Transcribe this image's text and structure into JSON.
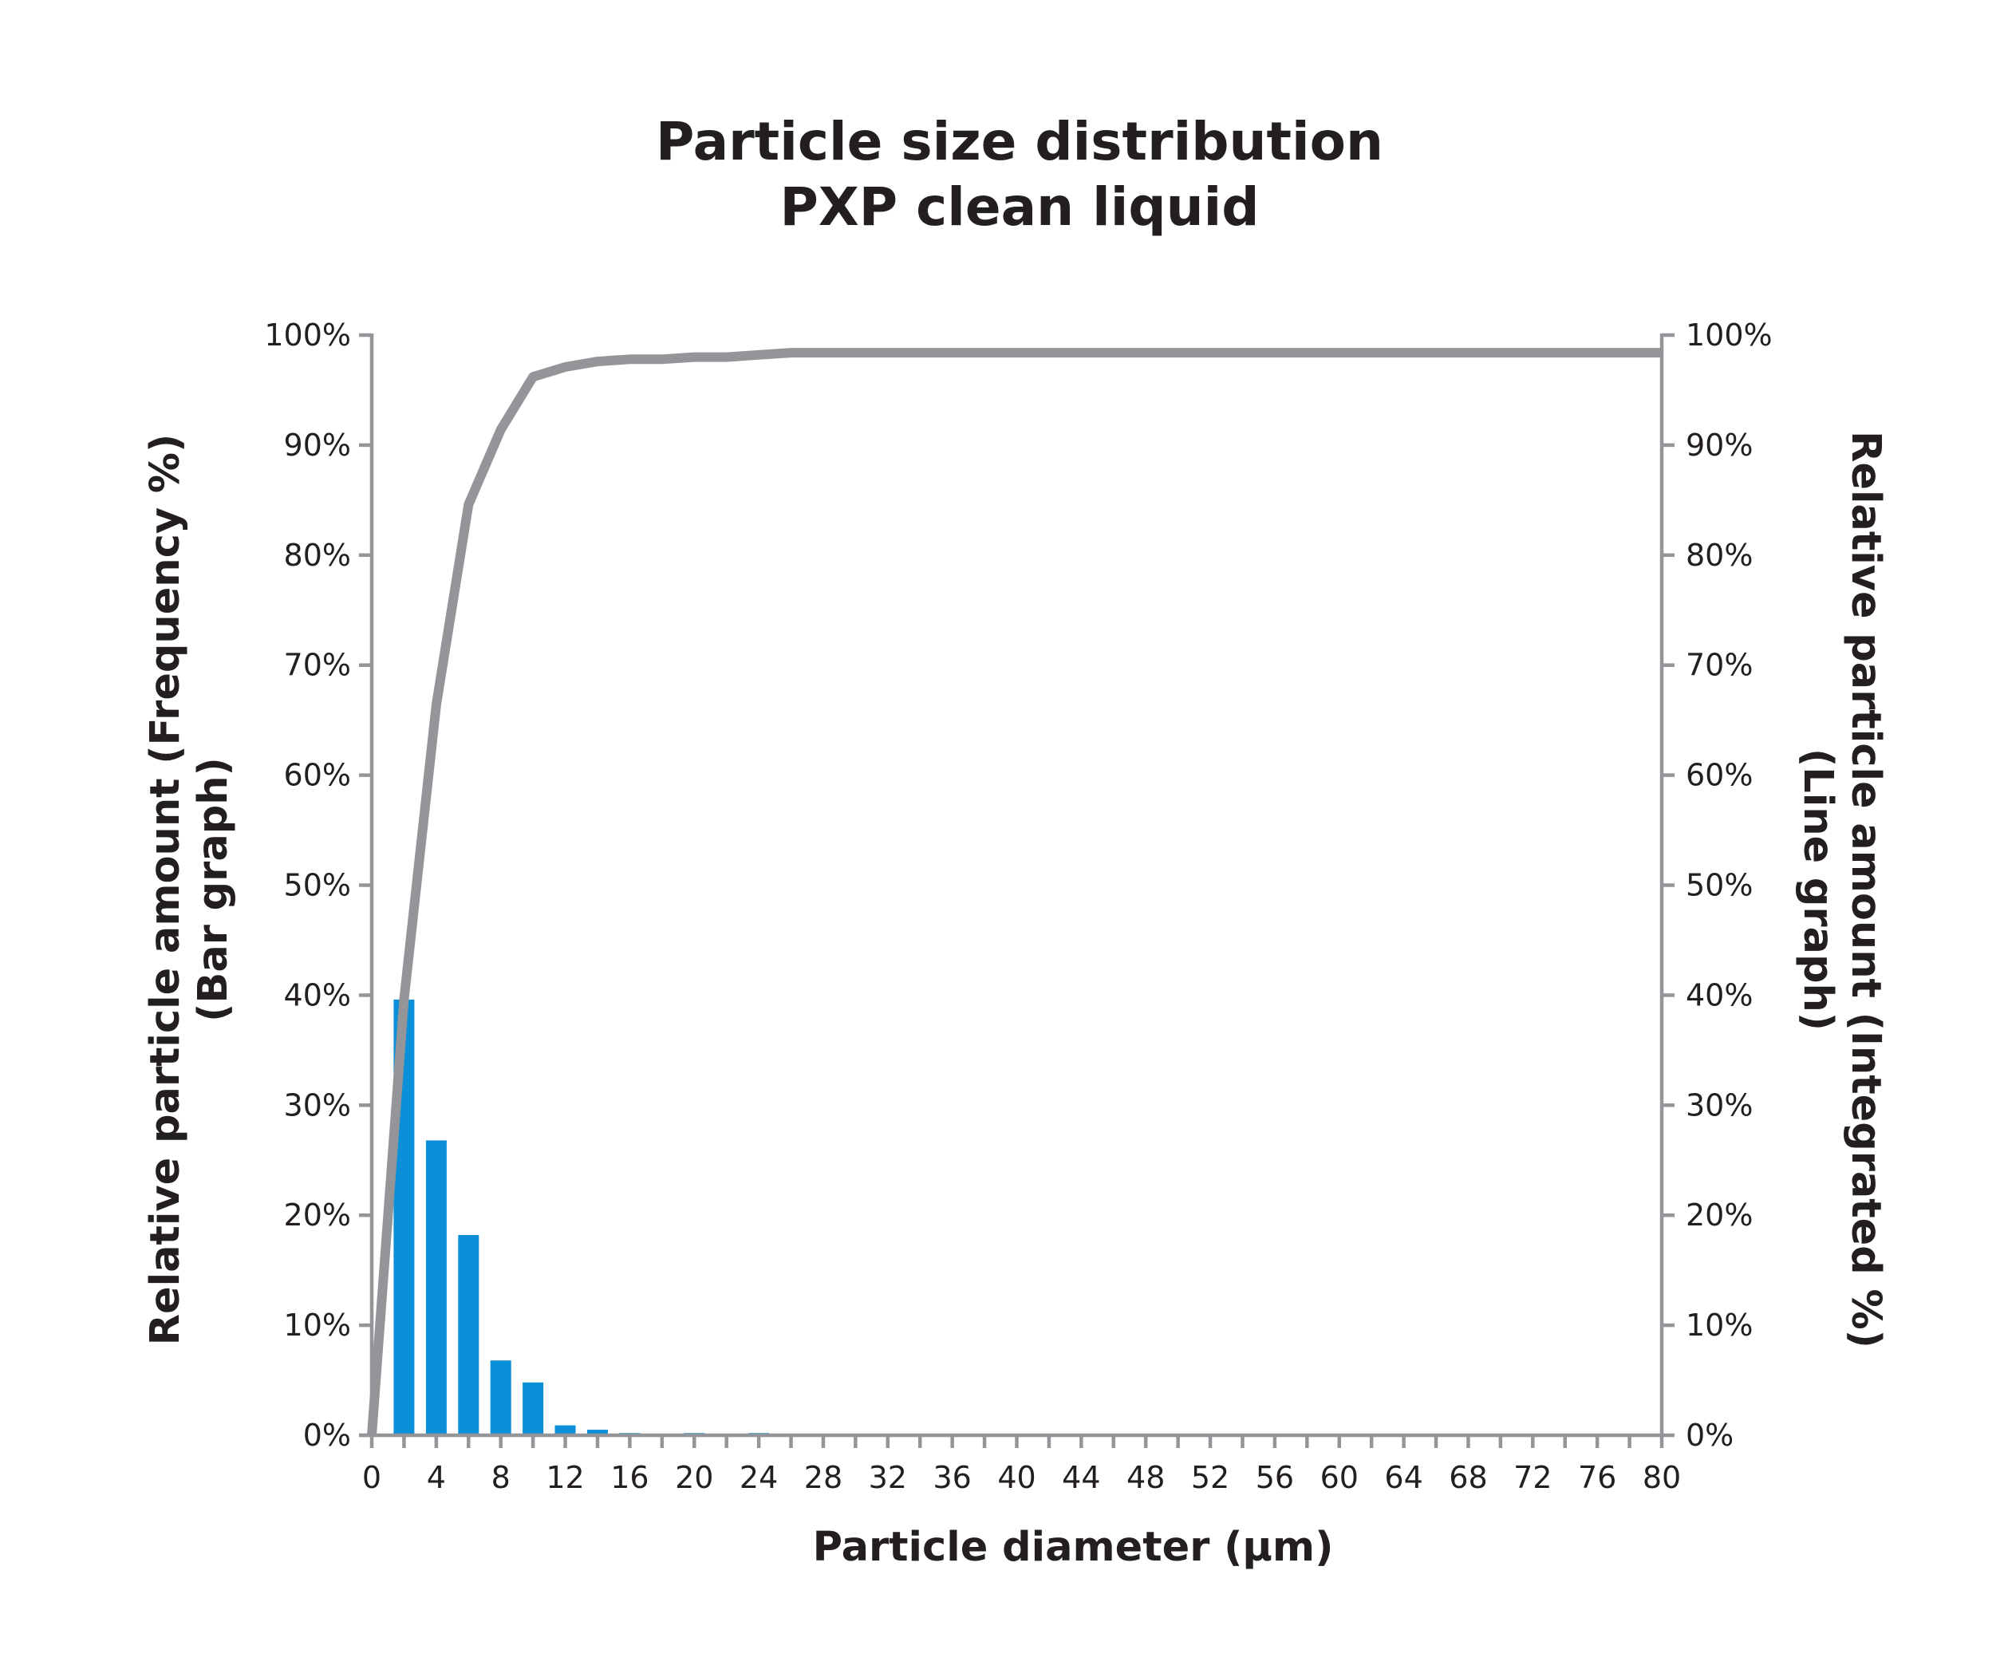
{
  "chart_data": {
    "type": "bar",
    "title": "Particle size distribution",
    "subtitle": "PXP clean liquid",
    "xlabel": "Particle diameter (µm)",
    "ylabel": "Relative particle amount (Frequency %)",
    "ylabel_sub": "(Bar graph)",
    "y2label": "Relative particle amount (Integrated %)",
    "y2label_sub": "(Line graph)",
    "xlim": [
      0,
      80
    ],
    "ylim": [
      0,
      100
    ],
    "y2lim": [
      0,
      100
    ],
    "x_ticks": [
      "0",
      "4",
      "8",
      "12",
      "16",
      "20",
      "24",
      "28",
      "32",
      "36",
      "40",
      "44",
      "48",
      "52",
      "56",
      "60",
      "64",
      "68",
      "72",
      "76",
      "80"
    ],
    "y_ticks": [
      "0%",
      "10%",
      "20%",
      "30%",
      "40%",
      "50%",
      "60%",
      "70%",
      "80%",
      "90%",
      "100%"
    ],
    "y2_ticks": [
      "0%",
      "10%",
      "20%",
      "30%",
      "40%",
      "50%",
      "60%",
      "70%",
      "80%",
      "90%",
      "100%"
    ],
    "grid": false,
    "colors": {
      "bars": "#0a8fd8",
      "line": "#939598",
      "axis": "#939598",
      "text": "#231f20"
    },
    "series": [
      {
        "type": "bar",
        "axis": "left",
        "x": [
          2,
          4,
          6,
          8,
          10,
          12,
          14,
          16,
          18,
          20,
          22,
          24
        ],
        "values": [
          39.6,
          26.8,
          18.2,
          6.8,
          4.8,
          0.9,
          0.5,
          0.2,
          0.0,
          0.2,
          0.0,
          0.2
        ]
      },
      {
        "type": "line",
        "axis": "right",
        "x": [
          0,
          2,
          4,
          6,
          8,
          10,
          12,
          14,
          16,
          18,
          20,
          22,
          24,
          26,
          80
        ],
        "values": [
          0,
          39.6,
          66.4,
          84.6,
          91.4,
          96.2,
          97.1,
          97.6,
          97.8,
          97.8,
          98.0,
          98.0,
          98.2,
          98.4,
          98.4
        ]
      }
    ]
  }
}
